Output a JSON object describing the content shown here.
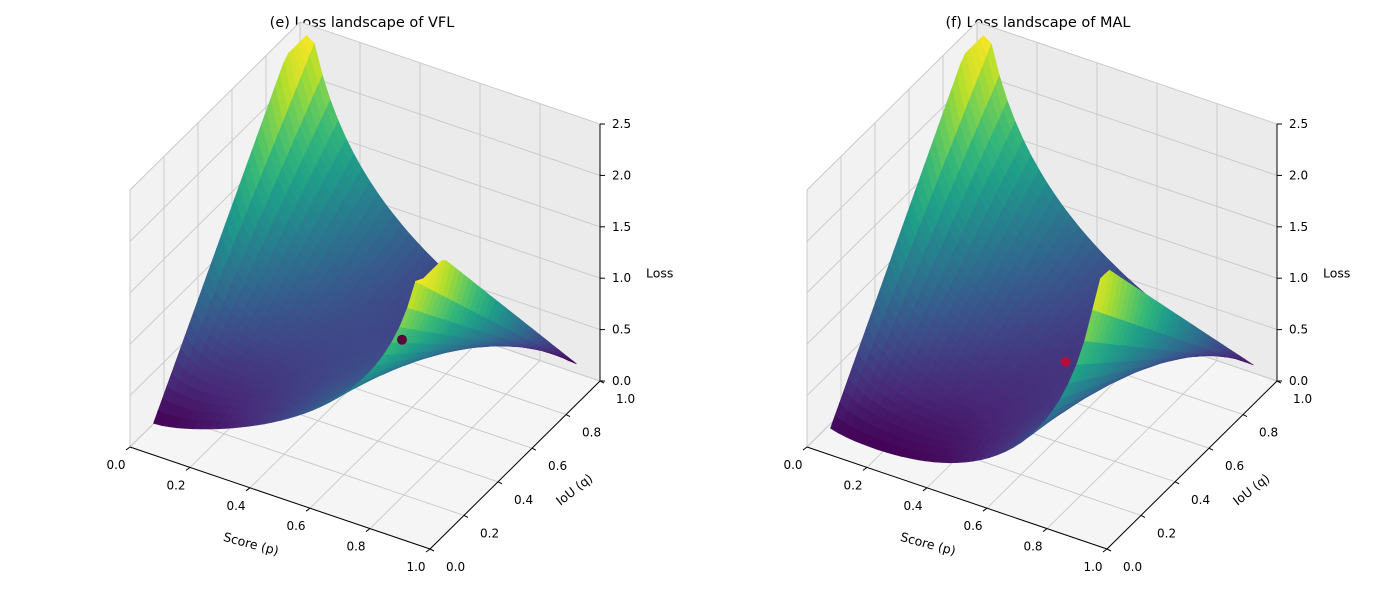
{
  "chart_data": [
    {
      "type": "surface3d",
      "title": "(e) Loss landscape of VFL",
      "xlabel": "Score (p)",
      "ylabel": "IoU (q)",
      "zlabel": "Loss",
      "xlim": [
        0,
        1
      ],
      "ylim": [
        0,
        1
      ],
      "zlim": [
        0,
        2.5
      ],
      "xticks": [
        "0.0",
        "0.2",
        "0.4",
        "0.6",
        "0.8",
        "1.0"
      ],
      "yticks": [
        "0.0",
        "0.2",
        "0.4",
        "0.6",
        "0.8",
        "1.0"
      ],
      "zticks": [
        "0.0",
        "0.5",
        "1.0",
        "1.5",
        "2.0",
        "2.5"
      ],
      "colormap": "viridis",
      "loss": "VFL",
      "p_range": [
        0.05,
        0.95
      ],
      "q_range": [
        0.05,
        0.95
      ],
      "grid": true,
      "marker": {
        "p": 0.85,
        "q": 0.1,
        "color": "#5a0a3a"
      }
    },
    {
      "type": "surface3d",
      "title": "(f) Loss landscape of MAL",
      "xlabel": "Score (p)",
      "ylabel": "IoU (q)",
      "zlabel": "Loss",
      "xlim": [
        0,
        1
      ],
      "ylim": [
        0,
        1
      ],
      "zlim": [
        0,
        2.5
      ],
      "xticks": [
        "0.0",
        "0.2",
        "0.4",
        "0.6",
        "0.8",
        "1.0"
      ],
      "yticks": [
        "0.0",
        "0.2",
        "0.4",
        "0.6",
        "0.8",
        "1.0"
      ],
      "zticks": [
        "0.0",
        "0.5",
        "1.0",
        "1.5",
        "2.0",
        "2.5"
      ],
      "colormap": "viridis",
      "loss": "MAL",
      "p_range": [
        0.05,
        0.95
      ],
      "q_range": [
        0.05,
        0.95
      ],
      "grid": true,
      "marker": {
        "p": 0.55,
        "q": 0.55,
        "color": "#b01040"
      }
    }
  ]
}
